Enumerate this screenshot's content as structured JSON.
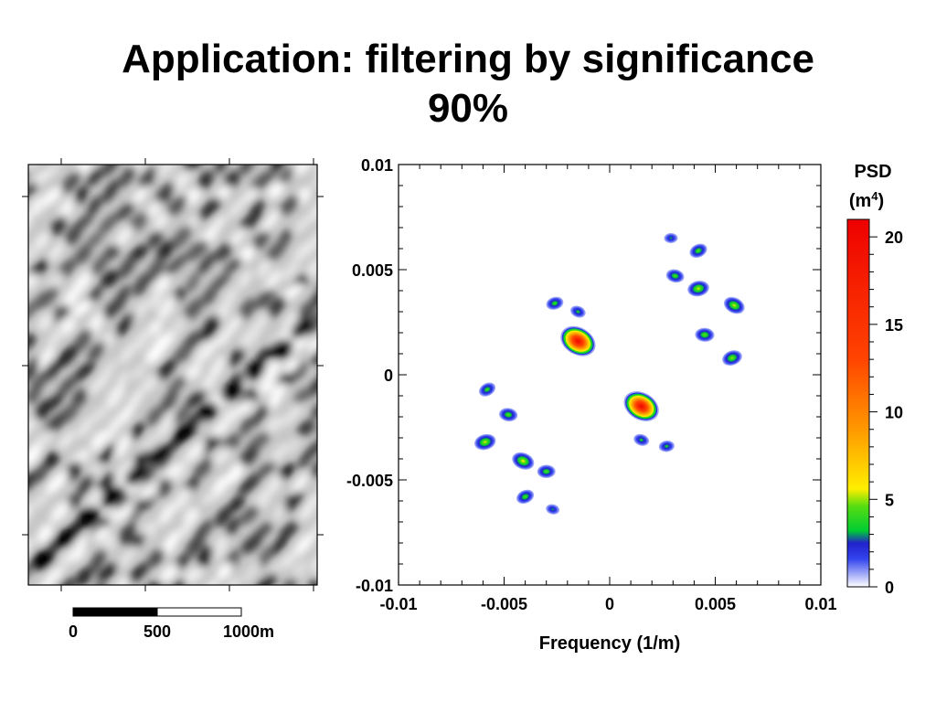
{
  "title": {
    "line1": "Application: filtering by significance",
    "line2": "90%"
  },
  "scale_bar": {
    "labels": [
      "0",
      "500",
      "1000"
    ],
    "unit": "m",
    "values_m": [
      0,
      500,
      1000
    ]
  },
  "colorbar": {
    "label_line1": "PSD",
    "label_line2_base": "(m",
    "label_line2_sup": "4",
    "label_line2_end": ")",
    "min": 0,
    "max": 21,
    "ticks": [
      0,
      5,
      10,
      15,
      20
    ],
    "tick_labels": [
      "0",
      "5",
      "10",
      "15",
      "20"
    ],
    "gradient": [
      {
        "v": 0,
        "color": "#ffffff"
      },
      {
        "v": 1.6,
        "color": "#3344ee"
      },
      {
        "v": 2.5,
        "color": "#2222cc"
      },
      {
        "v": 3.2,
        "color": "#00cc33"
      },
      {
        "v": 4.6,
        "color": "#55dd11"
      },
      {
        "v": 5.6,
        "color": "#ffee00"
      },
      {
        "v": 9,
        "color": "#ff9900"
      },
      {
        "v": 13,
        "color": "#ff4400"
      },
      {
        "v": 21,
        "color": "#ee0000"
      }
    ]
  },
  "chart_data": {
    "type": "heatmap",
    "title": "",
    "xlabel": "Frequency (1/m)",
    "ylabel": "",
    "xlim": [
      -0.01,
      0.01
    ],
    "ylim": [
      -0.01,
      0.01
    ],
    "x_ticks": [
      -0.01,
      -0.005,
      0,
      0.005,
      0.01
    ],
    "x_tick_labels": [
      "-0.01",
      "-0.005",
      "0",
      "0.005",
      "0.01"
    ],
    "y_ticks": [
      -0.01,
      -0.005,
      0,
      0.005,
      0.01
    ],
    "y_tick_labels": [
      "-0.01",
      "-0.005",
      "0",
      "0.005",
      "0.01"
    ],
    "peaks": [
      {
        "x": -0.0015,
        "y": 0.0016,
        "psd": 19
      },
      {
        "x": 0.0015,
        "y": -0.0015,
        "psd": 19
      },
      {
        "x": -0.0026,
        "y": 0.0034,
        "psd": 4
      },
      {
        "x": -0.0015,
        "y": 0.003,
        "psd": 3.5
      },
      {
        "x": 0.0029,
        "y": 0.0065,
        "psd": 3
      },
      {
        "x": 0.0042,
        "y": 0.0059,
        "psd": 4.2
      },
      {
        "x": 0.0031,
        "y": 0.0047,
        "psd": 4.2
      },
      {
        "x": 0.0042,
        "y": 0.0041,
        "psd": 5.2
      },
      {
        "x": 0.0059,
        "y": 0.0033,
        "psd": 5.2
      },
      {
        "x": 0.0045,
        "y": 0.0019,
        "psd": 4.5
      },
      {
        "x": 0.0058,
        "y": 0.0008,
        "psd": 4.8
      },
      {
        "x": 0.0015,
        "y": -0.0031,
        "psd": 3.5
      },
      {
        "x": 0.0027,
        "y": -0.0034,
        "psd": 3.5
      },
      {
        "x": -0.0058,
        "y": -0.0007,
        "psd": 4.0
      },
      {
        "x": -0.0048,
        "y": -0.0019,
        "psd": 4.3
      },
      {
        "x": -0.0059,
        "y": -0.0032,
        "psd": 5.2
      },
      {
        "x": -0.0041,
        "y": -0.0041,
        "psd": 5.5
      },
      {
        "x": -0.003,
        "y": -0.0046,
        "psd": 4.2
      },
      {
        "x": -0.004,
        "y": -0.0058,
        "psd": 4.2
      },
      {
        "x": -0.0027,
        "y": -0.0064,
        "psd": 3
      }
    ]
  }
}
